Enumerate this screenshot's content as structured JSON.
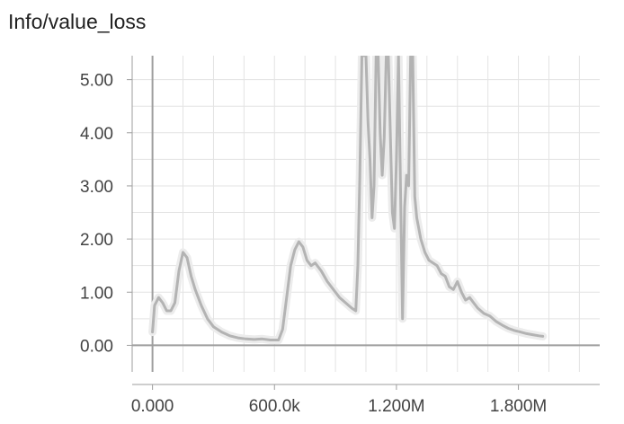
{
  "chart_data": {
    "type": "line",
    "title": "Info/value_loss",
    "xlabel": "",
    "ylabel": "",
    "xlim": [
      -100000,
      2200000
    ],
    "ylim": [
      -0.5,
      5.45
    ],
    "grid": true,
    "x_ticks": [
      {
        "value": 0,
        "label": "0.000"
      },
      {
        "value": 600000,
        "label": "600.0k"
      },
      {
        "value": 1200000,
        "label": "1.200M"
      },
      {
        "value": 1800000,
        "label": "1.800M"
      }
    ],
    "y_ticks": [
      {
        "value": 0,
        "label": "0.00"
      },
      {
        "value": 1,
        "label": "1.00"
      },
      {
        "value": 2,
        "label": "2.00"
      },
      {
        "value": 3,
        "label": "3.00"
      },
      {
        "value": 4,
        "label": "4.00"
      },
      {
        "value": 5,
        "label": "5.00"
      }
    ],
    "series": [
      {
        "color": "#b3b3b3",
        "raw_color": "#ececec",
        "x": [
          0,
          10000,
          30000,
          50000,
          70000,
          90000,
          110000,
          130000,
          150000,
          170000,
          190000,
          210000,
          240000,
          270000,
          300000,
          340000,
          380000,
          420000,
          460000,
          500000,
          540000,
          580000,
          620000,
          640000,
          660000,
          680000,
          700000,
          720000,
          740000,
          760000,
          780000,
          800000,
          830000,
          860000,
          890000,
          920000,
          950000,
          980000,
          1000000,
          1010000,
          1020000,
          1030000,
          1040000,
          1050000,
          1060000,
          1070000,
          1080000,
          1090000,
          1100000,
          1110000,
          1120000,
          1130000,
          1140000,
          1150000,
          1160000,
          1170000,
          1180000,
          1190000,
          1200000,
          1210000,
          1220000,
          1230000,
          1240000,
          1250000,
          1260000,
          1270000,
          1280000,
          1290000,
          1300000,
          1320000,
          1340000,
          1360000,
          1380000,
          1400000,
          1420000,
          1440000,
          1460000,
          1480000,
          1500000,
          1520000,
          1540000,
          1560000,
          1580000,
          1600000,
          1630000,
          1660000,
          1690000,
          1720000,
          1750000,
          1780000,
          1810000,
          1840000,
          1870000,
          1900000,
          1920000
        ],
        "y": [
          0.25,
          0.75,
          0.9,
          0.8,
          0.65,
          0.65,
          0.8,
          1.4,
          1.75,
          1.65,
          1.3,
          1.05,
          0.75,
          0.5,
          0.35,
          0.25,
          0.18,
          0.14,
          0.12,
          0.11,
          0.12,
          0.1,
          0.1,
          0.3,
          0.9,
          1.5,
          1.8,
          1.95,
          1.85,
          1.6,
          1.5,
          1.55,
          1.4,
          1.2,
          1.05,
          0.9,
          0.8,
          0.7,
          0.65,
          1.5,
          3.2,
          5.45,
          5.45,
          5.45,
          4.2,
          3.5,
          2.4,
          3.0,
          5.45,
          5.45,
          4.0,
          3.2,
          3.9,
          5.45,
          5.45,
          4.0,
          2.5,
          2.2,
          3.5,
          5.45,
          3.0,
          0.5,
          2.6,
          3.2,
          3.0,
          5.45,
          5.45,
          2.8,
          2.4,
          2.0,
          1.75,
          1.6,
          1.55,
          1.5,
          1.35,
          1.3,
          1.1,
          1.05,
          1.2,
          1.0,
          0.85,
          0.9,
          0.8,
          0.7,
          0.6,
          0.55,
          0.45,
          0.38,
          0.32,
          0.28,
          0.25,
          0.22,
          0.2,
          0.18,
          0.17
        ]
      }
    ]
  }
}
